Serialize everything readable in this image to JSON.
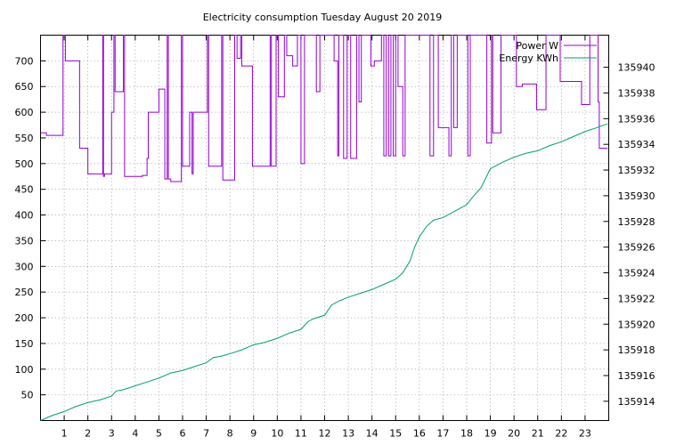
{
  "chart_data": {
    "type": "line",
    "title": "Electricity consumption Tuesday August 20 2019",
    "xlabel": "",
    "ylabel": "",
    "xlim": [
      0,
      24
    ],
    "ylim": [
      0,
      750
    ],
    "y2lim": [
      135912.5,
      135942.5
    ],
    "x_ticks": [
      1,
      2,
      3,
      4,
      5,
      6,
      7,
      8,
      9,
      10,
      11,
      12,
      13,
      14,
      15,
      16,
      17,
      18,
      19,
      20,
      21,
      22,
      23
    ],
    "y_ticks": [
      50,
      100,
      150,
      200,
      250,
      300,
      350,
      400,
      450,
      500,
      550,
      600,
      650,
      700
    ],
    "y2_ticks": [
      135914,
      135916,
      135918,
      135920,
      135922,
      135924,
      135926,
      135928,
      135930,
      135932,
      135934,
      135936,
      135938,
      135940
    ],
    "grid": true,
    "legend_position": "top-right",
    "series": [
      {
        "name": "Power W",
        "axis": "y",
        "color": "#9400d3",
        "points": [
          [
            0,
            560
          ],
          [
            0.25,
            555
          ],
          [
            0.9,
            555
          ],
          [
            0.95,
            750
          ],
          [
            1.05,
            700
          ],
          [
            1.6,
            700
          ],
          [
            1.65,
            530
          ],
          [
            1.95,
            530
          ],
          [
            2.0,
            480
          ],
          [
            2.6,
            480
          ],
          [
            2.63,
            750
          ],
          [
            2.66,
            475
          ],
          [
            2.7,
            480
          ],
          [
            3.0,
            600
          ],
          [
            3.1,
            750
          ],
          [
            3.15,
            640
          ],
          [
            3.45,
            640
          ],
          [
            3.5,
            750
          ],
          [
            3.55,
            475
          ],
          [
            4.0,
            475
          ],
          [
            4.3,
            477
          ],
          [
            4.45,
            477
          ],
          [
            4.5,
            510
          ],
          [
            4.55,
            600
          ],
          [
            4.9,
            600
          ],
          [
            5.0,
            645
          ],
          [
            5.2,
            645
          ],
          [
            5.25,
            470
          ],
          [
            5.35,
            750
          ],
          [
            5.4,
            470
          ],
          [
            5.5,
            465
          ],
          [
            5.9,
            465
          ],
          [
            5.95,
            750
          ],
          [
            6.0,
            495
          ],
          [
            6.2,
            495
          ],
          [
            6.3,
            600
          ],
          [
            6.4,
            480
          ],
          [
            6.45,
            600
          ],
          [
            7.0,
            600
          ],
          [
            7.05,
            750
          ],
          [
            7.1,
            495
          ],
          [
            7.6,
            495
          ],
          [
            7.65,
            750
          ],
          [
            7.7,
            468
          ],
          [
            8.1,
            468
          ],
          [
            8.2,
            750
          ],
          [
            8.3,
            705
          ],
          [
            8.45,
            750
          ],
          [
            8.5,
            690
          ],
          [
            8.9,
            690
          ],
          [
            8.95,
            495
          ],
          [
            9.6,
            495
          ],
          [
            9.7,
            750
          ],
          [
            9.75,
            495
          ],
          [
            9.95,
            750
          ],
          [
            10.05,
            630
          ],
          [
            10.3,
            750
          ],
          [
            10.4,
            710
          ],
          [
            10.65,
            690
          ],
          [
            10.85,
            750
          ],
          [
            11.0,
            500
          ],
          [
            11.15,
            750
          ],
          [
            11.2,
            750
          ],
          [
            11.5,
            750
          ],
          [
            11.65,
            640
          ],
          [
            11.8,
            750
          ],
          [
            12.0,
            750
          ],
          [
            12.1,
            750
          ],
          [
            12.3,
            750
          ],
          [
            12.4,
            700
          ],
          [
            12.55,
            515
          ],
          [
            12.6,
            750
          ],
          [
            12.8,
            510
          ],
          [
            12.95,
            750
          ],
          [
            13.1,
            510
          ],
          [
            13.3,
            510
          ],
          [
            13.35,
            750
          ],
          [
            13.45,
            620
          ],
          [
            13.55,
            750
          ],
          [
            13.8,
            750
          ],
          [
            13.95,
            690
          ],
          [
            14.1,
            700
          ],
          [
            14.4,
            750
          ],
          [
            14.5,
            515
          ],
          [
            14.6,
            750
          ],
          [
            14.7,
            515
          ],
          [
            14.8,
            750
          ],
          [
            14.9,
            515
          ],
          [
            15.0,
            750
          ],
          [
            15.1,
            650
          ],
          [
            15.3,
            515
          ],
          [
            15.4,
            750
          ],
          [
            15.7,
            750
          ],
          [
            16.0,
            750
          ],
          [
            16.3,
            750
          ],
          [
            16.45,
            515
          ],
          [
            16.6,
            750
          ],
          [
            16.8,
            570
          ],
          [
            17.2,
            570
          ],
          [
            17.25,
            515
          ],
          [
            17.35,
            750
          ],
          [
            17.45,
            570
          ],
          [
            17.6,
            750
          ],
          [
            18.05,
            515
          ],
          [
            18.15,
            750
          ],
          [
            18.35,
            750
          ],
          [
            18.6,
            750
          ],
          [
            18.85,
            540
          ],
          [
            19.05,
            750
          ],
          [
            19.1,
            560
          ],
          [
            19.4,
            560
          ],
          [
            19.45,
            750
          ],
          [
            19.6,
            750
          ],
          [
            19.8,
            750
          ],
          [
            19.95,
            750
          ],
          [
            20.1,
            650
          ],
          [
            20.35,
            655
          ],
          [
            20.9,
            655
          ],
          [
            20.95,
            605
          ],
          [
            21.25,
            605
          ],
          [
            21.35,
            750
          ],
          [
            21.5,
            750
          ],
          [
            21.95,
            660
          ],
          [
            22.8,
            660
          ],
          [
            22.85,
            615
          ],
          [
            23.15,
            615
          ],
          [
            23.2,
            750
          ],
          [
            23.4,
            750
          ],
          [
            23.55,
            620
          ],
          [
            23.6,
            530
          ],
          [
            23.95,
            530
          ]
        ]
      },
      {
        "name": "Energy KWh",
        "axis": "y2",
        "color": "#009e73",
        "points": [
          [
            0,
            135912.5
          ],
          [
            0.5,
            135912.9
          ],
          [
            1.0,
            135913.2
          ],
          [
            1.5,
            135913.6
          ],
          [
            2.0,
            135913.9
          ],
          [
            2.5,
            135914.1
          ],
          [
            3.0,
            135914.4
          ],
          [
            3.2,
            135914.8
          ],
          [
            3.5,
            135914.9
          ],
          [
            4.0,
            135915.2
          ],
          [
            4.5,
            135915.5
          ],
          [
            5.0,
            135915.8
          ],
          [
            5.5,
            135916.2
          ],
          [
            6.0,
            135916.4
          ],
          [
            6.5,
            135916.7
          ],
          [
            7.0,
            135917.0
          ],
          [
            7.3,
            135917.4
          ],
          [
            7.6,
            135917.5
          ],
          [
            8.0,
            135917.7
          ],
          [
            8.5,
            135918.0
          ],
          [
            9.0,
            135918.4
          ],
          [
            9.5,
            135918.6
          ],
          [
            10.0,
            135918.9
          ],
          [
            10.5,
            135919.3
          ],
          [
            11.0,
            135919.6
          ],
          [
            11.3,
            135920.2
          ],
          [
            11.5,
            135920.4
          ],
          [
            12.0,
            135920.7
          ],
          [
            12.3,
            135921.5
          ],
          [
            12.6,
            135921.8
          ],
          [
            13.0,
            135922.1
          ],
          [
            13.5,
            135922.4
          ],
          [
            14.0,
            135922.7
          ],
          [
            14.5,
            135923.1
          ],
          [
            15.0,
            135923.5
          ],
          [
            15.3,
            135924.0
          ],
          [
            15.6,
            135924.9
          ],
          [
            15.8,
            135926.0
          ],
          [
            16.0,
            135926.8
          ],
          [
            16.3,
            135927.6
          ],
          [
            16.6,
            135928.1
          ],
          [
            17.0,
            135928.3
          ],
          [
            17.5,
            135928.8
          ],
          [
            18.0,
            135929.3
          ],
          [
            18.3,
            135930.0
          ],
          [
            18.6,
            135930.6
          ],
          [
            19.0,
            135932.1
          ],
          [
            19.5,
            135932.6
          ],
          [
            20.0,
            135933.0
          ],
          [
            20.5,
            135933.3
          ],
          [
            21.0,
            135933.5
          ],
          [
            21.5,
            135933.9
          ],
          [
            22.0,
            135934.2
          ],
          [
            22.5,
            135934.6
          ],
          [
            23.0,
            135935.0
          ],
          [
            23.5,
            135935.3
          ],
          [
            23.95,
            135935.6
          ]
        ]
      }
    ]
  }
}
